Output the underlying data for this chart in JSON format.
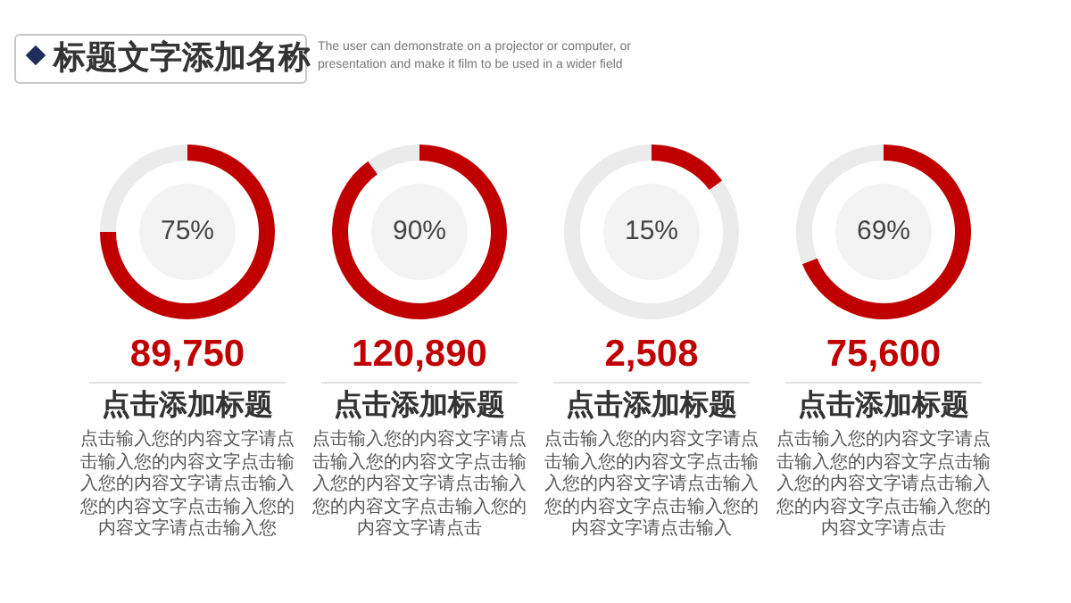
{
  "chart_data": [
    {
      "type": "other",
      "title": "标题文字添加名称",
      "subtitle": "The user can demonstrate on a projector or computer, or presentation and make it film to be used in a wider field"
    },
    {
      "type": "donut",
      "title": "89,750",
      "subtitle": "点击添加标题",
      "annotations": [
        "点击输入您的内容文字请点击输入您的内容文字点击输入您的内容文字请点击输入您的内容文字点击输入您的内容文字请点击输入您"
      ],
      "categories": [
        null,
        null
      ],
      "values": [
        75,
        25
      ],
      "colors": [
        "#c00000",
        "#ebebeb"
      ],
      "value_labels": [
        "75%",
        null
      ]
    },
    {
      "type": "donut",
      "title": "120,890",
      "subtitle": "点击添加标题",
      "annotations": [
        "点击输入您的内容文字请点击输入您的内容文字点击输入您的内容文字请点击输入您的内容文字点击输入您的内容文字请点击"
      ],
      "categories": [
        null,
        null
      ],
      "values": [
        90,
        10
      ],
      "colors": [
        "#c00000",
        "#ebebeb"
      ],
      "value_labels": [
        "90%",
        null
      ]
    },
    {
      "type": "donut",
      "title": "2,508",
      "subtitle": "点击添加标题",
      "annotations": [
        "点击输入您的内容文字请点击输入您的内容文字点击输入您的内容文字请点击输入您的内容文字点击输入您的内容文字请点击输入"
      ],
      "categories": [
        null,
        null
      ],
      "values": [
        15,
        85
      ],
      "colors": [
        "#c00000",
        "#ebebeb"
      ],
      "value_labels": [
        "15%",
        null
      ]
    },
    {
      "type": "donut",
      "title": "75,600",
      "subtitle": "点击添加标题",
      "annotations": [
        "点击输入您的内容文字请点击输入您的内容文字点击输入您的内容文字请点击输入您的内容文字点击输入您的内容文字请点击"
      ],
      "categories": [
        null,
        null
      ],
      "values": [
        69,
        31
      ],
      "colors": [
        "#c00000",
        "#ebebeb"
      ],
      "value_labels": [
        "69%",
        null
      ]
    }
  ]
}
